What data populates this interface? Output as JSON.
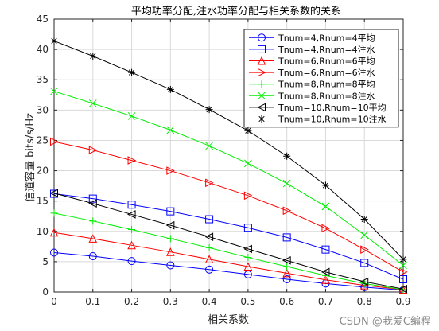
{
  "chart_data": {
    "type": "line",
    "title": "平均功率分配,注水功率分配与相关系数的关系",
    "xlabel": "相关系数",
    "ylabel": "信道容量 bits/s/Hz",
    "x": [
      0,
      0.1,
      0.2,
      0.3,
      0.4,
      0.5,
      0.6,
      0.7,
      0.8,
      0.9
    ],
    "xticks": [
      "0",
      "0.1",
      "0.2",
      "0.3",
      "0.4",
      "0.5",
      "0.6",
      "0.7",
      "0.8",
      "0.9"
    ],
    "yticks": [
      "0",
      "5",
      "10",
      "15",
      "20",
      "25",
      "30",
      "35",
      "40",
      "45"
    ],
    "xlim": [
      0,
      0.9
    ],
    "ylim": [
      0,
      45
    ],
    "grid": true,
    "legend_position": "top-right",
    "series": [
      {
        "name": "Tnum=4,Rnum=4平均",
        "color": "#0000ff",
        "marker": "circle",
        "values": [
          6.5,
          5.9,
          5.1,
          4.4,
          3.7,
          2.9,
          2.1,
          1.4,
          0.8,
          0.3
        ]
      },
      {
        "name": "Tnum=4,Rnum=4注水",
        "color": "#0000ff",
        "marker": "square",
        "values": [
          16.2,
          15.4,
          14.4,
          13.3,
          12.0,
          10.6,
          9.0,
          7.0,
          4.8,
          2.1
        ]
      },
      {
        "name": "Tnum=6,Rnum=6平均",
        "color": "#ff0000",
        "marker": "triangle-up",
        "values": [
          9.8,
          8.8,
          7.7,
          6.6,
          5.4,
          4.2,
          3.1,
          2.0,
          1.1,
          0.4
        ]
      },
      {
        "name": "Tnum=6,Rnum=6注水",
        "color": "#ff0000",
        "marker": "triangle-right",
        "values": [
          24.8,
          23.4,
          21.7,
          20.0,
          18.0,
          15.9,
          13.4,
          10.5,
          7.0,
          3.3
        ]
      },
      {
        "name": "Tnum=8,Rnum=8平均",
        "color": "#00ee00",
        "marker": "plus",
        "values": [
          13.0,
          11.7,
          10.3,
          8.8,
          7.3,
          5.7,
          4.2,
          2.7,
          1.4,
          0.4
        ]
      },
      {
        "name": "Tnum=8,Rnum=8注水",
        "color": "#00ee00",
        "marker": "x",
        "values": [
          33.1,
          31.1,
          29.0,
          26.7,
          24.1,
          21.2,
          17.9,
          14.1,
          9.4,
          4.4
        ]
      },
      {
        "name": "Tnum=10,Rnum=10平均",
        "color": "#000000",
        "marker": "triangle-left",
        "values": [
          16.3,
          14.6,
          12.8,
          11.0,
          9.1,
          7.1,
          5.2,
          3.3,
          1.7,
          0.5
        ]
      },
      {
        "name": "Tnum=10,Rnum=10注水",
        "color": "#000000",
        "marker": "asterisk",
        "values": [
          41.4,
          38.9,
          36.2,
          33.4,
          30.1,
          26.6,
          22.4,
          17.6,
          12.0,
          5.4
        ]
      }
    ]
  },
  "watermark": "CSDN @我爱C编程"
}
